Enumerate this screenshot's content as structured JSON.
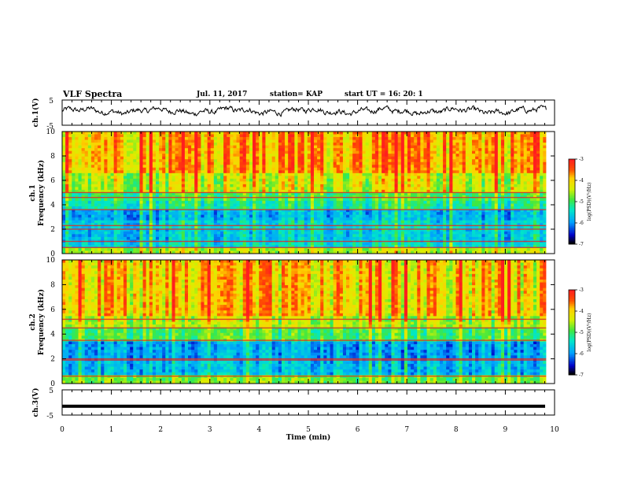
{
  "header": {
    "title": "VLF Spectra",
    "date": "Jul. 11, 2017",
    "station": "station= KAP",
    "start": "start  UT =   16: 20: 1"
  },
  "chart_data": [
    {
      "type": "line",
      "name": "ch1-voltage",
      "ylabel": "ch.1(V)",
      "ylim": [
        -5,
        5
      ],
      "yticks": [
        "5",
        "-5"
      ],
      "xlim": [
        0,
        10
      ]
    },
    {
      "type": "heatmap",
      "name": "ch1-spectrogram",
      "ylabel": "ch.1",
      "ylabel2": "Frequency (kHz)",
      "ylim": [
        0,
        10
      ],
      "yticks": [
        "0",
        "2",
        "4",
        "6",
        "8",
        "10"
      ],
      "xlim": [
        0,
        10
      ],
      "data_end_min": 9.83,
      "colorbar": {
        "label": "log(PSD)(V²/Hz)",
        "range": [
          -7,
          -3
        ],
        "ticks": [
          "-3",
          "-4",
          "-5",
          "-6",
          "-7"
        ]
      },
      "bands_khz": [
        {
          "lo": 0.0,
          "hi": 0.5,
          "level": 0.62
        },
        {
          "lo": 0.5,
          "hi": 1.0,
          "level": 0.38
        },
        {
          "lo": 1.0,
          "hi": 2.0,
          "level": 0.34
        },
        {
          "lo": 2.0,
          "hi": 2.8,
          "level": 0.36
        },
        {
          "lo": 2.8,
          "hi": 3.6,
          "level": 0.3
        },
        {
          "lo": 3.6,
          "hi": 4.3,
          "level": 0.44
        },
        {
          "lo": 4.3,
          "hi": 5.0,
          "level": 0.5
        },
        {
          "lo": 5.0,
          "hi": 6.5,
          "level": 0.66
        },
        {
          "lo": 6.5,
          "hi": 10.0,
          "level": 0.8
        }
      ],
      "lines_khz": [
        0.5,
        1.0,
        2.0,
        2.3,
        3.6,
        4.6,
        5.0
      ]
    },
    {
      "type": "heatmap",
      "name": "ch2-spectrogram",
      "ylabel": "ch.2",
      "ylabel2": "Frequency (kHz)",
      "ylim": [
        0,
        10
      ],
      "yticks": [
        "0",
        "2",
        "4",
        "6",
        "8",
        "10"
      ],
      "xlim": [
        0,
        10
      ],
      "data_end_min": 9.83,
      "colorbar": {
        "label": "log(PSD)(V²/Hz)",
        "range": [
          -7,
          -3
        ],
        "ticks": [
          "-3",
          "-4",
          "-5",
          "-6",
          "-7"
        ]
      },
      "bands_khz": [
        {
          "lo": 0.0,
          "hi": 0.6,
          "level": 0.55
        },
        {
          "lo": 0.6,
          "hi": 1.9,
          "level": 0.3
        },
        {
          "lo": 1.9,
          "hi": 3.5,
          "level": 0.26
        },
        {
          "lo": 3.5,
          "hi": 4.5,
          "level": 0.5
        },
        {
          "lo": 4.5,
          "hi": 5.5,
          "level": 0.62
        },
        {
          "lo": 5.5,
          "hi": 10.0,
          "level": 0.74
        }
      ],
      "lines_khz": [
        0.6,
        1.9,
        2.0,
        3.5,
        4.5,
        5.2
      ]
    },
    {
      "type": "line",
      "name": "ch3-voltage",
      "ylabel": "ch.3(V)",
      "ylim": [
        -5,
        5
      ],
      "yticks": [
        "5",
        "-5"
      ],
      "xlim": [
        0,
        10
      ],
      "xlabel": "Time (min)",
      "xticks": [
        "0",
        "1",
        "2",
        "3",
        "4",
        "5",
        "6",
        "7",
        "8",
        "9",
        "10"
      ],
      "constant_value": -1.5
    }
  ]
}
